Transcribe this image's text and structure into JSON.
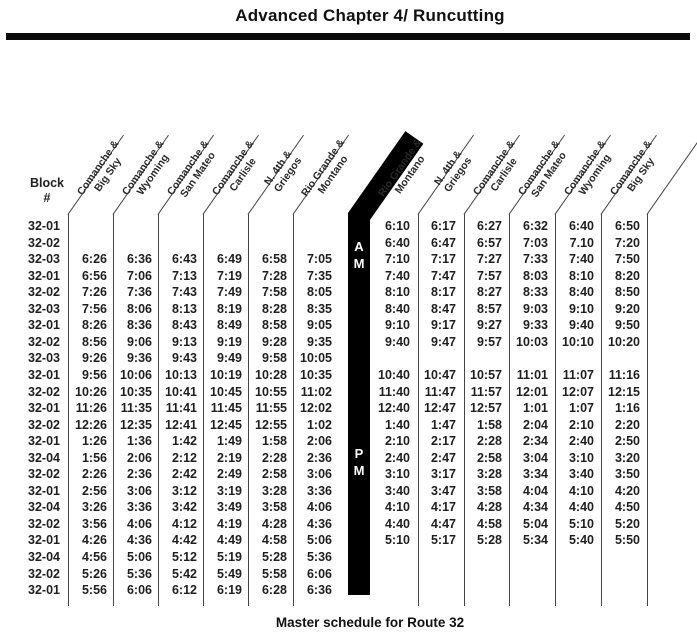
{
  "header": {
    "title": "Advanced Chapter 4/ Runcutting"
  },
  "footer": {
    "caption": "Master schedule for Route 32"
  },
  "colors": {
    "bar": "#000000",
    "text": "#1c1c1c",
    "line": "#454545"
  },
  "table": {
    "block_header_line1": "Block",
    "block_header_line2": "#",
    "am_top": "A",
    "am_bottom": "M",
    "pm_top": "P",
    "pm_bottom": "M",
    "left_columns": [
      {
        "line1": "Comanche &",
        "line2": "Big Sky"
      },
      {
        "line1": "Comanche &",
        "line2": "Wyoming"
      },
      {
        "line1": "Comanche &",
        "line2": "San Mateo"
      },
      {
        "line1": "Comanche &",
        "line2": "Carlisle"
      },
      {
        "line1": "N. 4th &",
        "line2": "Griegos"
      },
      {
        "line1": "Rio Grande &",
        "line2": "Montano"
      }
    ],
    "right_columns": [
      {
        "line1": "Rio Grande &",
        "line2": "Montano"
      },
      {
        "line1": "N. 4th &",
        "line2": "Griegos"
      },
      {
        "line1": "Comanche &",
        "line2": "Carlisle"
      },
      {
        "line1": "Comanche &",
        "line2": "San Mateo"
      },
      {
        "line1": "Comanche &",
        "line2": "Wyoming"
      },
      {
        "line1": "Comanche &",
        "line2": "Big Sky"
      }
    ],
    "rows": [
      {
        "block": "32-01",
        "left": [
          "",
          "",
          "",
          "",
          "",
          ""
        ],
        "right": [
          "6:10",
          "6:17",
          "6:27",
          "6:32",
          "6:40",
          "6:50"
        ]
      },
      {
        "block": "32-02",
        "left": [
          "",
          "",
          "",
          "",
          "",
          ""
        ],
        "right": [
          "6:40",
          "6:47",
          "6:57",
          "7:03",
          "7.10",
          "7:20"
        ]
      },
      {
        "block": "32-03",
        "left": [
          "6:26",
          "6:36",
          "6:43",
          "6:49",
          "6:58",
          "7:05"
        ],
        "right": [
          "7:10",
          "7:17",
          "7:27",
          "7:33",
          "7:40",
          "7:50"
        ]
      },
      {
        "block": "32-01",
        "left": [
          "6:56",
          "7:06",
          "7:13",
          "7:19",
          "7:28",
          "7:35"
        ],
        "right": [
          "7:40",
          "7:47",
          "7:57",
          "8:03",
          "8:10",
          "8:20"
        ]
      },
      {
        "block": "32-02",
        "left": [
          "7:26",
          "7:36",
          "7:43",
          "7:49",
          "7:58",
          "8:05"
        ],
        "right": [
          "8:10",
          "8:17",
          "8:27",
          "8:33",
          "8:40",
          "8:50"
        ]
      },
      {
        "block": "32-03",
        "left": [
          "7:56",
          "8:06",
          "8:13",
          "8:19",
          "8:28",
          "8:35"
        ],
        "right": [
          "8:40",
          "8:47",
          "8:57",
          "9:03",
          "9:10",
          "9:20"
        ]
      },
      {
        "block": "32-01",
        "left": [
          "8:26",
          "8:36",
          "8:43",
          "8:49",
          "8:58",
          "9:05"
        ],
        "right": [
          "9:10",
          "9:17",
          "9:27",
          "9:33",
          "9:40",
          "9:50"
        ]
      },
      {
        "block": "32-02",
        "left": [
          "8:56",
          "9:06",
          "9:13",
          "9:19",
          "9:28",
          "9:35"
        ],
        "right": [
          "9:40",
          "9:47",
          "9:57",
          "10:03",
          "10:10",
          "10:20"
        ]
      },
      {
        "block": "32-03",
        "left": [
          "9:26",
          "9:36",
          "9:43",
          "9:49",
          "9:58",
          "10:05"
        ],
        "right": [
          "",
          "",
          "",
          "",
          "",
          ""
        ]
      },
      {
        "block": "32-01",
        "left": [
          "9:56",
          "10:06",
          "10:13",
          "10:19",
          "10:28",
          "10:35"
        ],
        "right": [
          "10:40",
          "10:47",
          "10:57",
          "11:01",
          "11:07",
          "11:16"
        ]
      },
      {
        "block": "32-02",
        "left": [
          "10:26",
          "10:35",
          "10:41",
          "10:45",
          "10:55",
          "11:02"
        ],
        "right": [
          "11:40",
          "11:47",
          "11:57",
          "12:01",
          "12:07",
          "12:15"
        ]
      },
      {
        "block": "32-01",
        "left": [
          "11:26",
          "11:35",
          "11:41",
          "11:45",
          "11:55",
          "12:02"
        ],
        "right": [
          "12:40",
          "12:47",
          "12:57",
          "1:01",
          "1:07",
          "1:16"
        ]
      },
      {
        "block": "32-02",
        "left": [
          "12:26",
          "12:35",
          "12:41",
          "12:45",
          "12:55",
          "1:02"
        ],
        "right": [
          "1:40",
          "1:47",
          "1:58",
          "2:04",
          "2:10",
          "2:20"
        ]
      },
      {
        "block": "32-01",
        "left": [
          "1:26",
          "1:36",
          "1:42",
          "1:49",
          "1:58",
          "2:06"
        ],
        "right": [
          "2:10",
          "2:17",
          "2:28",
          "2:34",
          "2:40",
          "2:50"
        ]
      },
      {
        "block": "32-04",
        "left": [
          "1:56",
          "2:06",
          "2:12",
          "2:19",
          "2:28",
          "2:36"
        ],
        "right": [
          "2:40",
          "2:47",
          "2:58",
          "3:04",
          "3:10",
          "3:20"
        ]
      },
      {
        "block": "32-02",
        "left": [
          "2:26",
          "2:36",
          "2:42",
          "2:49",
          "2:58",
          "3:06"
        ],
        "right": [
          "3:10",
          "3:17",
          "3:28",
          "3:34",
          "3:40",
          "3:50"
        ]
      },
      {
        "block": "32-01",
        "left": [
          "2:56",
          "3:06",
          "3:12",
          "3:19",
          "3:28",
          "3:36"
        ],
        "right": [
          "3:40",
          "3:47",
          "3:58",
          "4:04",
          "4:10",
          "4:20"
        ]
      },
      {
        "block": "32-04",
        "left": [
          "3:26",
          "3:36",
          "3:42",
          "3:49",
          "3:58",
          "4:06"
        ],
        "right": [
          "4:10",
          "4:17",
          "4:28",
          "4:34",
          "4:40",
          "4:50"
        ]
      },
      {
        "block": "32-02",
        "left": [
          "3:56",
          "4:06",
          "4:12",
          "4:19",
          "4:28",
          "4:36"
        ],
        "right": [
          "4:40",
          "4:47",
          "4:58",
          "5:04",
          "5:10",
          "5:20"
        ]
      },
      {
        "block": "32-01",
        "left": [
          "4:26",
          "4:36",
          "4:42",
          "4:49",
          "4:58",
          "5:06"
        ],
        "right": [
          "5:10",
          "5:17",
          "5:28",
          "5:34",
          "5:40",
          "5:50"
        ]
      },
      {
        "block": "32-04",
        "left": [
          "4:56",
          "5:06",
          "5:12",
          "5:19",
          "5:28",
          "5:36"
        ],
        "right": [
          "",
          "",
          "",
          "",
          "",
          ""
        ]
      },
      {
        "block": "32-02",
        "left": [
          "5:26",
          "5:36",
          "5:42",
          "5:49",
          "5:58",
          "6:06"
        ],
        "right": [
          "",
          "",
          "",
          "",
          "",
          ""
        ]
      },
      {
        "block": "32-01",
        "left": [
          "5:56",
          "6:06",
          "6:12",
          "6:19",
          "6:28",
          "6:36"
        ],
        "right": [
          "",
          "",
          "",
          "",
          "",
          ""
        ]
      }
    ]
  }
}
